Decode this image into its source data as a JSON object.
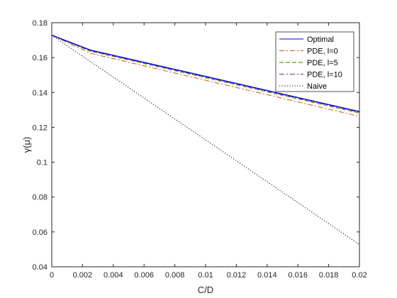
{
  "chart_data": {
    "type": "line",
    "xlabel": "C/D",
    "ylabel": "γ(μ)",
    "xlim": [
      0,
      0.02
    ],
    "ylim": [
      0.04,
      0.18
    ],
    "xticks": [
      "0",
      "0.002",
      "0.004",
      "0.006",
      "0.008",
      "0.01",
      "0.012",
      "0.014",
      "0.016",
      "0.018",
      "0.02"
    ],
    "yticks": [
      "0.04",
      "0.06",
      "0.08",
      "0.1",
      "0.12",
      "0.14",
      "0.16",
      "0.18"
    ],
    "grid": false,
    "legend_position": "top-right",
    "series": [
      {
        "name": "Optimal",
        "color": "#0000ff",
        "style": "solid",
        "x": [
          0,
          0.0025,
          0.02
        ],
        "y": [
          0.1728,
          0.1643,
          0.129
        ]
      },
      {
        "name": "PDE, l=0",
        "color": "#d95319",
        "style": "dashdot",
        "x": [
          0,
          0.0025,
          0.02
        ],
        "y": [
          0.1728,
          0.1625,
          0.1263
        ]
      },
      {
        "name": "PDE, l=5",
        "color": "#77ac30",
        "style": "dashed",
        "x": [
          0,
          0.0025,
          0.02
        ],
        "y": [
          0.1728,
          0.1637,
          0.1282
        ]
      },
      {
        "name": "PDE, l=10",
        "color": "#7e2f8e",
        "style": "dashdot",
        "x": [
          0,
          0.0025,
          0.02
        ],
        "y": [
          0.1728,
          0.164,
          0.1286
        ]
      },
      {
        "name": "Naive",
        "color": "#000000",
        "style": "dotted",
        "x": [
          0,
          0.02
        ],
        "y": [
          0.1728,
          0.0528
        ]
      }
    ]
  }
}
